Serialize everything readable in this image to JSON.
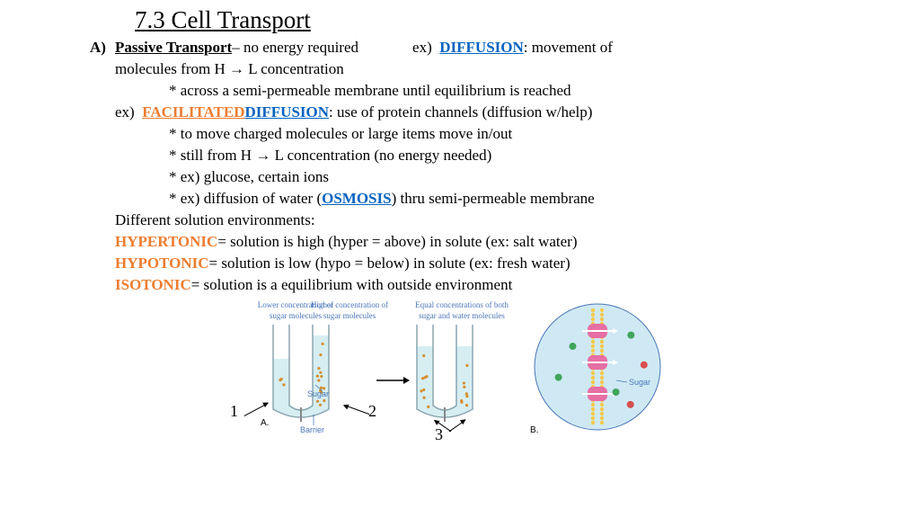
{
  "title": "7.3  Cell Transport",
  "sectionLabel": "A)",
  "passive": {
    "term": "Passive Transport",
    "desc": " – no energy required"
  },
  "ex": "ex)",
  "diffusion": {
    "term": "DIFFUSION",
    "desc": ":  movement of"
  },
  "line2": "molecules from H → L concentration",
  "bullet1": "*  across a semi-permeable membrane until equilibrium is reached",
  "facilitated": {
    "t1": "FACILITATED ",
    "t2": "DIFFUSION",
    "desc": ":  use of protein channels (diffusion w/help)"
  },
  "bullet2": "*  to move charged molecules or large items move in/out",
  "bullet3": "*  still from H → L concentration (no energy needed)",
  "bullet4": "*  ex) glucose, certain ions",
  "bullet5a": "*  ex)  diffusion of water (",
  "osmosis": "OSMOSIS",
  "bullet5b": ") thru semi-permeable membrane",
  "envs": "Different solution environments:",
  "hyper": {
    "t": "HYPERTONIC",
    "d": " = solution is high (hyper = above) in solute (ex:  salt water)"
  },
  "hypo": {
    "t": "HYPOTONIC",
    "d": " = solution is low (hypo = below) in solute (ex:  fresh water)"
  },
  "iso": {
    "t": "ISOTONIC",
    "d": " = solution is a equilibrium with outside environment"
  },
  "fig": {
    "cap1": "Lower concentration of sugar molecules",
    "cap2": "Higher concentration of sugar molecules",
    "cap3": "Equal concentrations of both sugar and water molecules",
    "sugar": "Sugar",
    "barrier": "Barrier",
    "A": "A.",
    "B": "B.",
    "n1": "1",
    "n2": "2",
    "n3": "3",
    "tubeFill": "#d6eef2",
    "tubeStroke": "#8aa6b0",
    "dot": "#d68f2e",
    "circFill": "#cfe9f4",
    "membrane": "#f4c94f",
    "prot": "#e66fa3",
    "green": "#3fa65a",
    "red": "#d64e4e"
  }
}
